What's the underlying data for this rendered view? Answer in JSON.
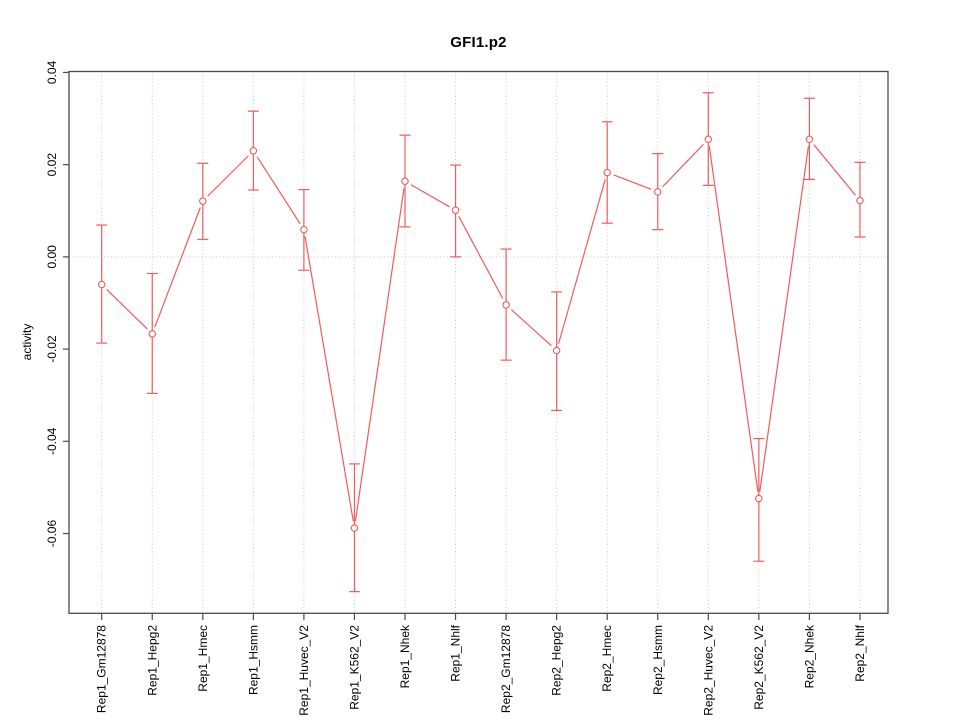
{
  "colors": {
    "series": "#f25b5b",
    "axis": "#4a4a4a",
    "grid": "#c9c9c9",
    "text": "#000000",
    "background": "#ffffff"
  },
  "chart_data": {
    "type": "line",
    "title": "GFI1.p2",
    "xlabel": "",
    "ylabel": "activity",
    "error_bars": true,
    "marker": "open-circle",
    "grid": {
      "vertical_per_category": true,
      "horizontal_at_zero": true,
      "style": "dotted"
    },
    "legend": "none",
    "ylim": [
      -0.0773,
      0.0402
    ],
    "yticks": [
      {
        "value": 0.04,
        "label": "0.04"
      },
      {
        "value": 0.02,
        "label": "0.02"
      },
      {
        "value": 0.0,
        "label": "0.00"
      },
      {
        "value": -0.02,
        "label": "-0.02"
      },
      {
        "value": -0.04,
        "label": "-0.04"
      },
      {
        "value": -0.06,
        "label": "-0.06"
      }
    ],
    "categories": [
      "Rep1_Gm12878",
      "Rep1_Hepg2",
      "Rep1_Hmec",
      "Rep1_Hsmm",
      "Rep1_Huvec_V2",
      "Rep1_K562_V2",
      "Rep1_Nhek",
      "Rep1_Nhlf",
      "Rep2_Gm12878",
      "Rep2_Hepg2",
      "Rep2_Hmec",
      "Rep2_Hsmm",
      "Rep2_Huvec_V2",
      "Rep2_K562_V2",
      "Rep2_Nhek",
      "Rep2_Nhlf"
    ],
    "series": [
      {
        "name": "GFI1.p2 activity",
        "values": [
          -0.006,
          -0.0167,
          0.0121,
          0.023,
          0.0059,
          -0.0588,
          0.0164,
          0.0101,
          -0.0104,
          -0.0203,
          0.0183,
          0.0141,
          0.0255,
          -0.0524,
          0.0255,
          0.0122
        ],
        "err_low": [
          -0.0187,
          -0.0296,
          0.0038,
          0.0145,
          -0.0029,
          -0.0726,
          0.0065,
          0.0,
          -0.0224,
          -0.0333,
          0.0073,
          0.0059,
          0.0155,
          -0.066,
          0.0168,
          0.0043
        ],
        "err_high": [
          0.0069,
          -0.0036,
          0.0203,
          0.0316,
          0.0146,
          -0.0449,
          0.0264,
          0.0199,
          0.0017,
          -0.0076,
          0.0293,
          0.0224,
          0.0356,
          -0.0394,
          0.0344,
          0.0205
        ]
      }
    ]
  }
}
